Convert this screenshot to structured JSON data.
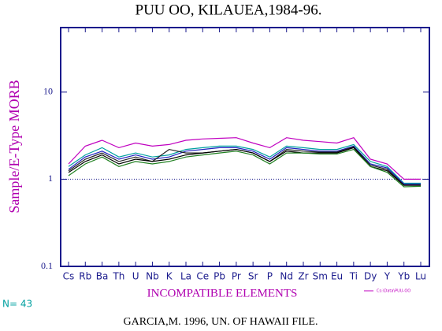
{
  "chart_data": {
    "type": "line",
    "title": "PUU OO, KILAUEA,1984-96.",
    "y_label": "Sample/E-Type MORB",
    "x_label": "INCOMPATIBLE ELEMENTS",
    "count_label": "N= 43",
    "footer": "GARCIA,M. 1996, UN. OF HAWAII FILE.",
    "legend_text": "Cs:\\Data\\PUU-OO",
    "log_scale": true,
    "reference_line": 1,
    "frame_color": "#1a1a8c",
    "categories": [
      "Cs",
      "Rb",
      "Ba",
      "Th",
      "U",
      "Nb",
      "K",
      "La",
      "Ce",
      "Pb",
      "Pr",
      "Sr",
      "P",
      "Nd",
      "Zr",
      "Sm",
      "Eu",
      "Ti",
      "Dy",
      "Y",
      "Yb",
      "Lu"
    ],
    "ylim": [
      0.1,
      55
    ],
    "yticks": [
      0.1,
      1,
      10
    ],
    "series": [
      {
        "color": "#c000c0",
        "values": [
          1.5,
          2.4,
          2.8,
          2.3,
          2.6,
          2.4,
          2.5,
          2.8,
          2.9,
          2.95,
          3.0,
          2.6,
          2.3,
          3.0,
          2.8,
          2.7,
          2.6,
          3.0,
          1.7,
          1.5,
          1.0,
          1.0
        ]
      },
      {
        "color": "#00a0a0",
        "values": [
          1.4,
          1.9,
          2.3,
          1.8,
          2.0,
          1.8,
          1.9,
          2.2,
          2.3,
          2.4,
          2.4,
          2.2,
          1.8,
          2.4,
          2.3,
          2.2,
          2.2,
          2.5,
          1.6,
          1.4,
          0.9,
          0.9
        ]
      },
      {
        "color": "#2020c0",
        "values": [
          1.3,
          1.8,
          2.1,
          1.7,
          1.9,
          1.7,
          1.8,
          2.1,
          2.2,
          2.3,
          2.3,
          2.1,
          1.7,
          2.3,
          2.2,
          2.1,
          2.1,
          2.4,
          1.5,
          1.35,
          0.88,
          0.88
        ]
      },
      {
        "color": "#202020",
        "values": [
          1.25,
          1.7,
          2.0,
          1.6,
          1.8,
          1.6,
          2.2,
          2.0,
          2.0,
          2.1,
          2.2,
          2.0,
          1.6,
          2.2,
          2.1,
          2.05,
          2.05,
          2.35,
          1.45,
          1.3,
          0.86,
          0.86
        ]
      },
      {
        "color": "#000000",
        "values": [
          1.2,
          1.6,
          1.9,
          1.5,
          1.7,
          1.6,
          1.7,
          1.9,
          2.0,
          2.1,
          2.2,
          2.0,
          1.6,
          2.1,
          2.0,
          2.0,
          2.0,
          2.3,
          1.4,
          1.25,
          0.85,
          0.85
        ]
      },
      {
        "color": "#208020",
        "values": [
          1.1,
          1.5,
          1.8,
          1.4,
          1.6,
          1.5,
          1.6,
          1.8,
          1.9,
          2.0,
          2.1,
          1.9,
          1.5,
          2.0,
          2.0,
          1.95,
          1.95,
          2.2,
          1.4,
          1.2,
          0.82,
          0.83
        ]
      }
    ]
  }
}
